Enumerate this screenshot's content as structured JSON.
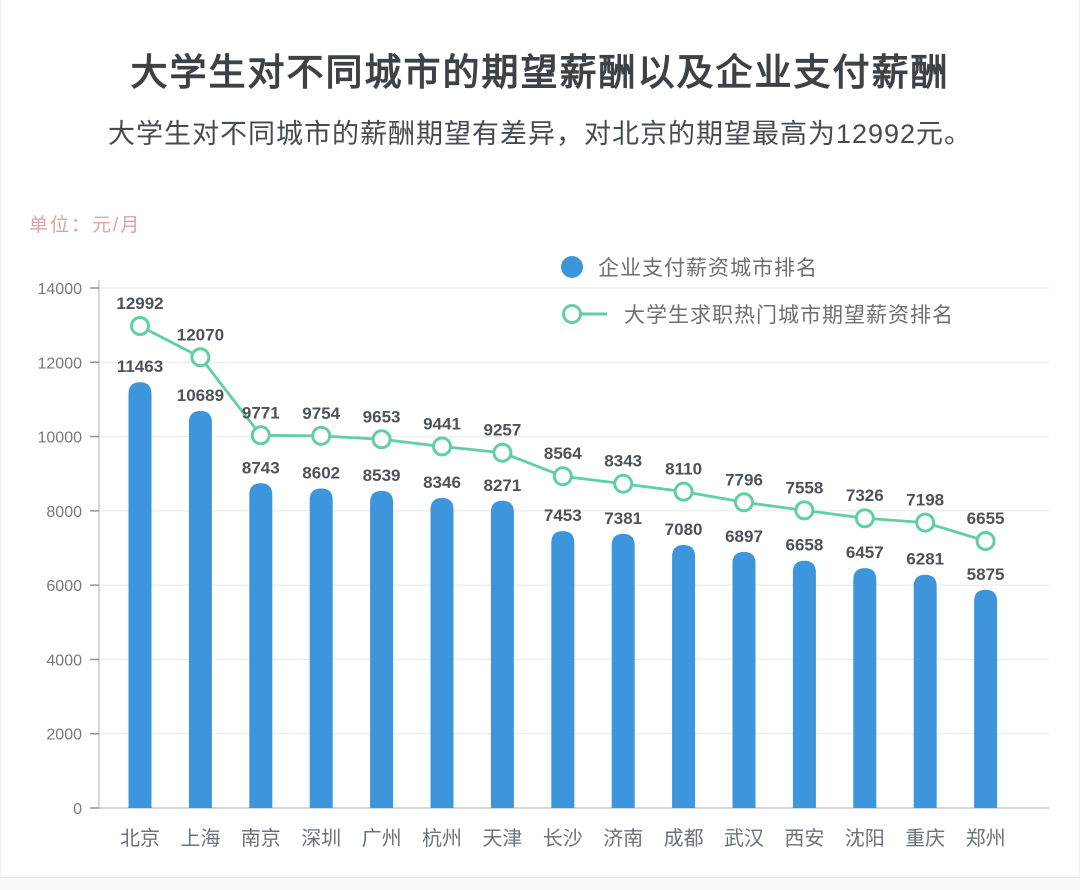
{
  "unit_label": "单位：元/月",
  "chart_data": {
    "type": "combo",
    "title": "大学生对不同城市的期望薪酬以及企业支付薪酬",
    "subtitle": "大学生对不同城市的薪酬期望有差异，对北京的期望最高为12992元。",
    "unit": "元/月",
    "categories": [
      "北京",
      "上海",
      "南京",
      "深圳",
      "广州",
      "杭州",
      "天津",
      "长沙",
      "济南",
      "成都",
      "武汉",
      "西安",
      "沈阳",
      "重庆",
      "郑州"
    ],
    "series": [
      {
        "name": "企业支付薪资城市排名",
        "type": "bar",
        "color": "#3d96db",
        "values": [
          11463,
          10689,
          8743,
          8602,
          8539,
          8346,
          8271,
          7453,
          7381,
          7080,
          6897,
          6658,
          6457,
          6281,
          5875
        ]
      },
      {
        "name": "大学生求职热门城市期望薪资排名",
        "type": "line",
        "color": "#62cea3",
        "marker": "open-circle",
        "values": [
          12992,
          12070,
          9771,
          9754,
          9653,
          9441,
          9257,
          8564,
          8343,
          8110,
          7796,
          7558,
          7326,
          7198,
          6655
        ]
      }
    ],
    "ylim": [
      0,
      14000
    ],
    "ytick_step": 2000,
    "yticks": [
      0,
      2000,
      4000,
      6000,
      8000,
      10000,
      12000,
      14000
    ],
    "grid": true,
    "data_labels": true,
    "legend_position": "top-right"
  },
  "colors": {
    "title_text": "#3d4247",
    "subtitle_text": "#464b52",
    "unit_text": "#dba4a1",
    "value_label_text": "#4d535a",
    "axis_text": "#75797e",
    "city_text": "#69737d",
    "gridline": "#ececec",
    "axis_line": "#c5cad0"
  }
}
